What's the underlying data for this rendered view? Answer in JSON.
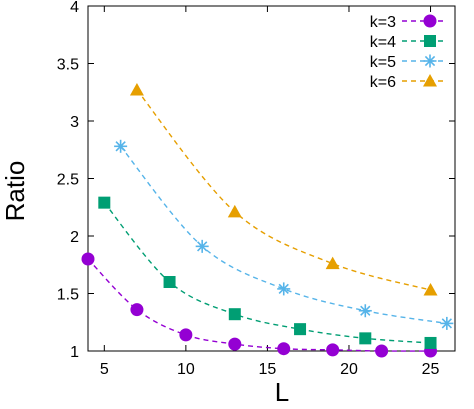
{
  "chart_data": {
    "type": "line",
    "title": "",
    "xlabel": "L",
    "ylabel": "Ratio",
    "xlim": [
      4,
      26.5
    ],
    "ylim": [
      1,
      4
    ],
    "xticks": [
      5,
      10,
      15,
      20,
      25
    ],
    "yticks": [
      1,
      1.5,
      2,
      2.5,
      3,
      3.5,
      4
    ],
    "ytick_labels": [
      "1",
      "1.5",
      "2",
      "2.5",
      "3",
      "3.5",
      "4"
    ],
    "grid": false,
    "legend_position": "top-right",
    "series": [
      {
        "name": "k=3",
        "color": "#9400d3",
        "marker": "circle",
        "x": [
          4,
          7,
          10,
          13,
          16,
          19,
          22,
          25
        ],
        "y": [
          1.8,
          1.36,
          1.14,
          1.06,
          1.02,
          1.01,
          1.0,
          1.0
        ]
      },
      {
        "name": "k=4",
        "color": "#009e73",
        "marker": "square",
        "x": [
          5,
          9,
          13,
          17,
          21,
          25
        ],
        "y": [
          2.29,
          1.6,
          1.32,
          1.19,
          1.11,
          1.07
        ]
      },
      {
        "name": "k=5",
        "color": "#56b4e9",
        "marker": "star",
        "x": [
          6,
          11,
          16,
          21,
          26
        ],
        "y": [
          2.78,
          1.91,
          1.54,
          1.35,
          1.24
        ]
      },
      {
        "name": "k=6",
        "color": "#e69f00",
        "marker": "triangle",
        "x": [
          7,
          13,
          19,
          25
        ],
        "y": [
          3.27,
          2.21,
          1.76,
          1.53
        ]
      }
    ]
  }
}
